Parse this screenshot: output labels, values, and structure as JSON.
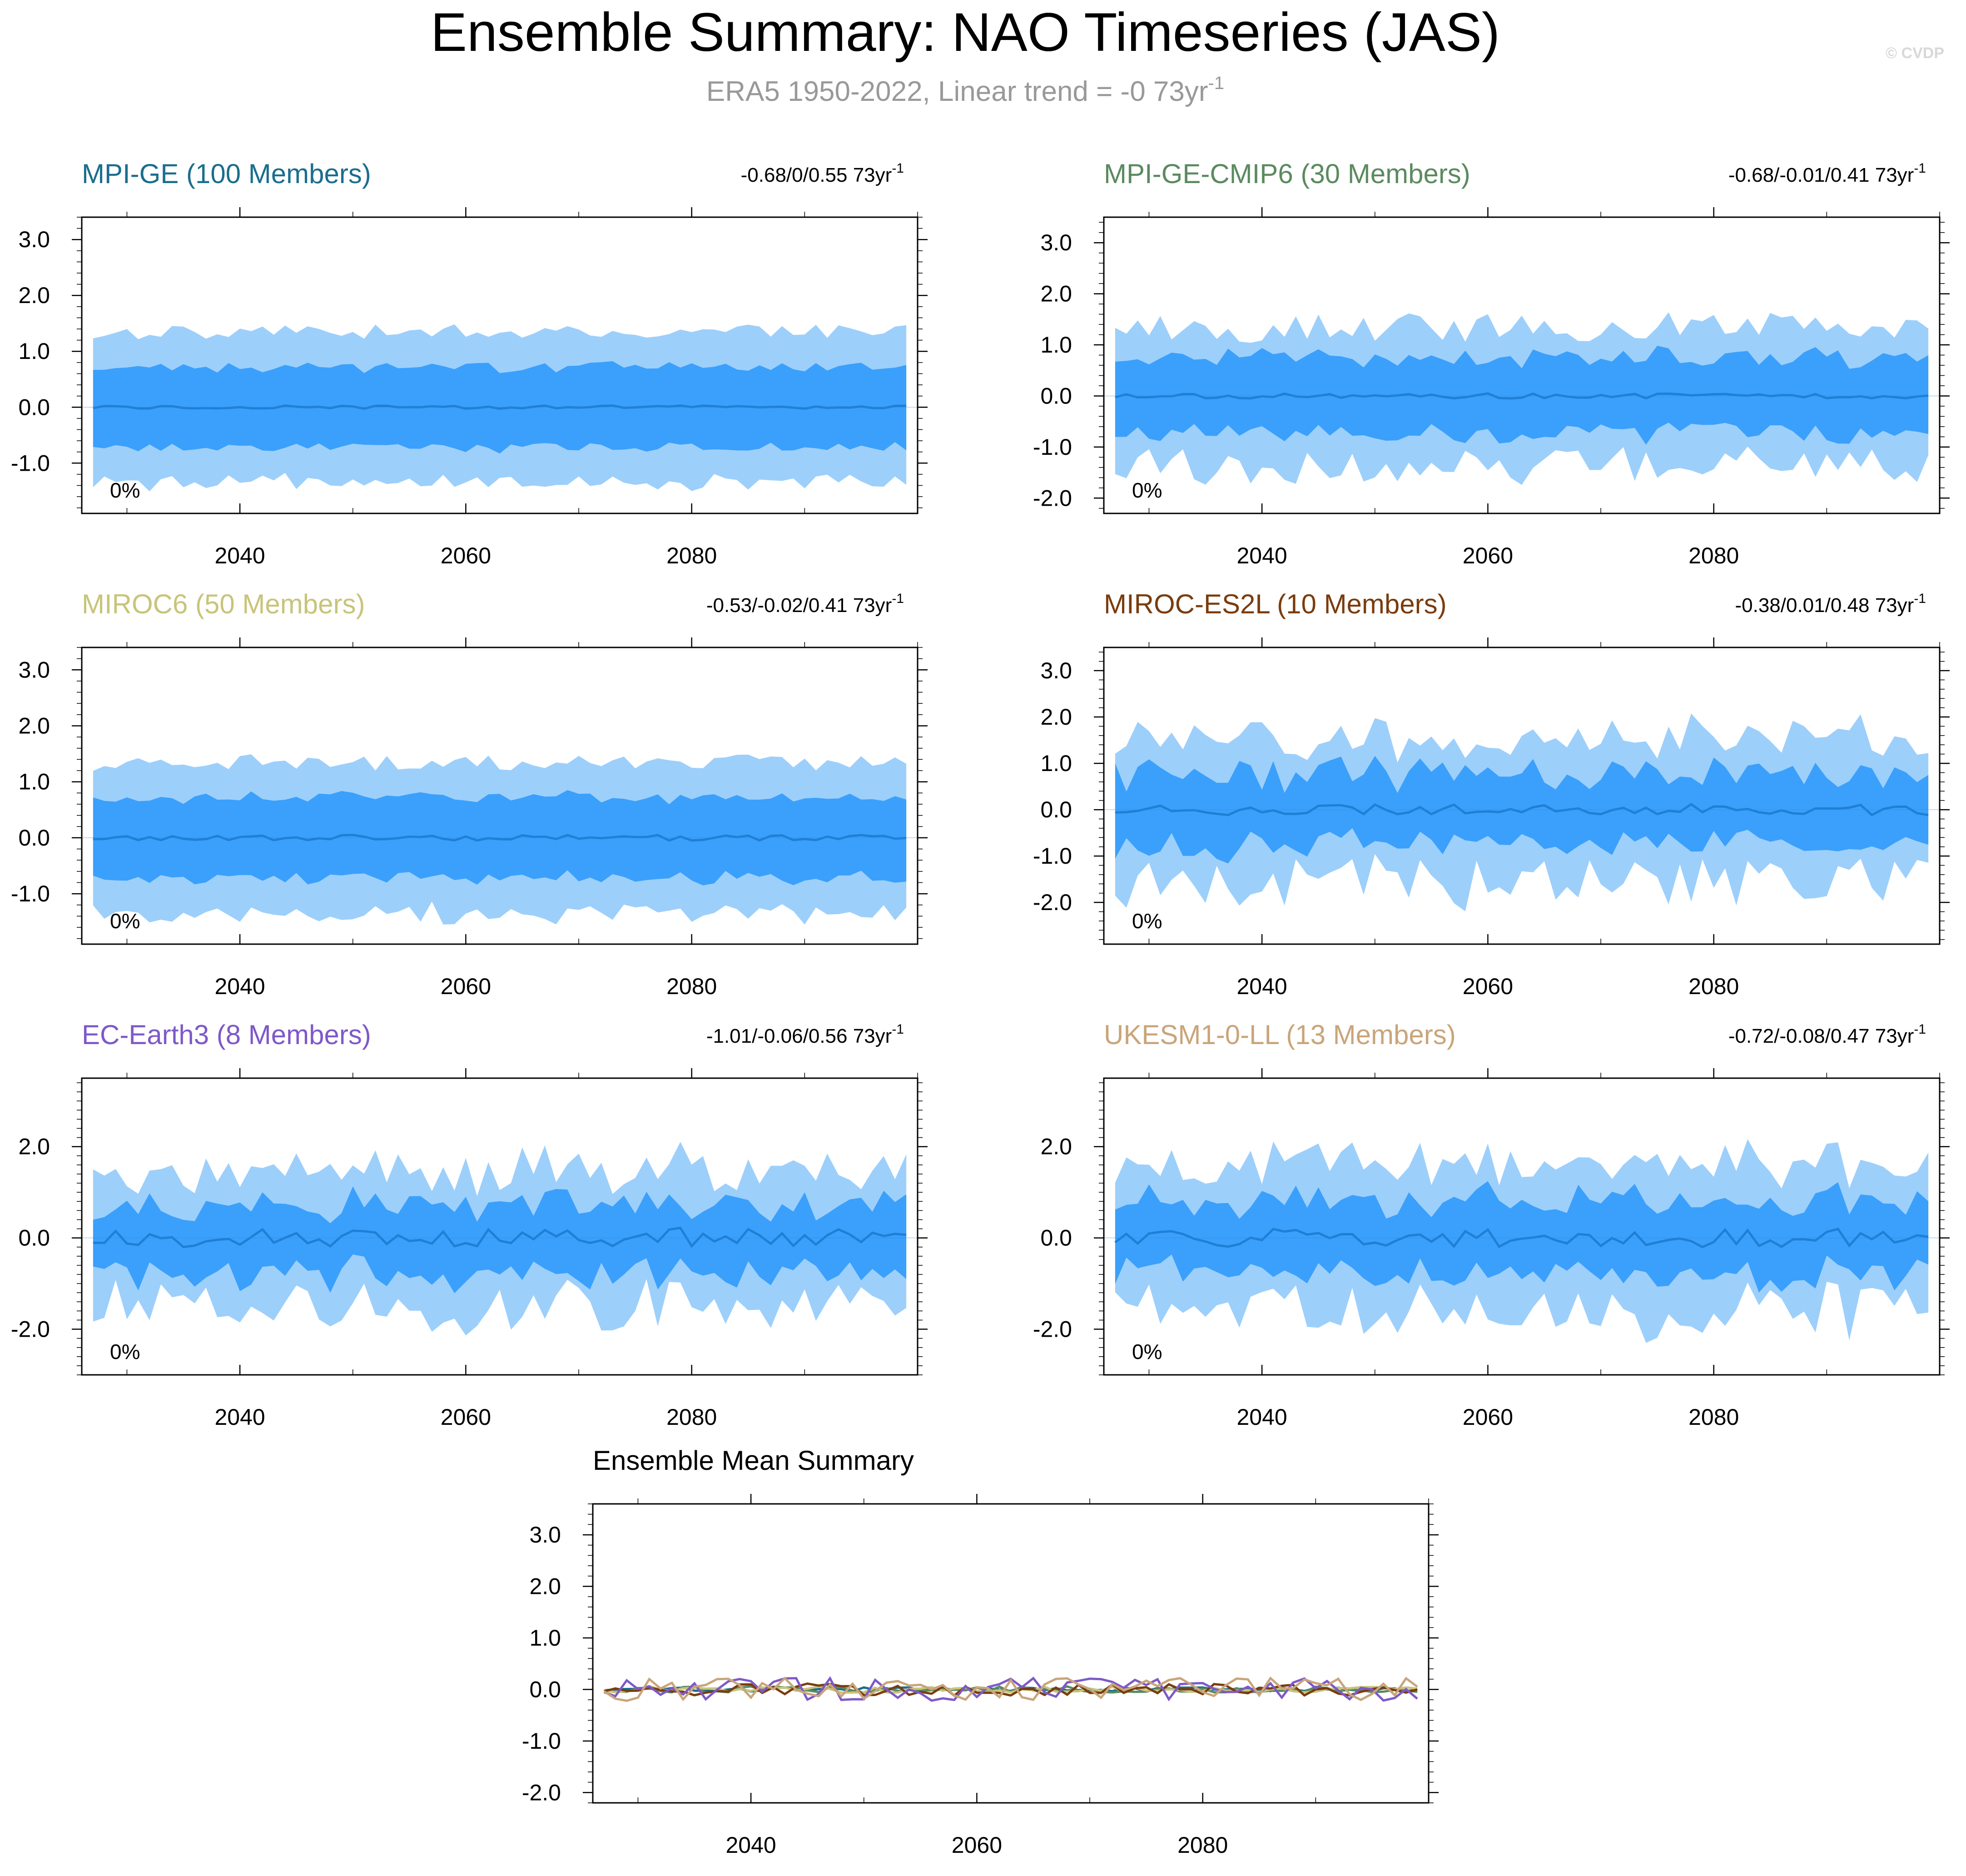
{
  "header": {
    "title": "Ensemble Summary: NAO Timeseries (JAS)",
    "subtitle_main": "ERA5 1950-2022, Linear trend = -0 73yr",
    "subtitle_exp": "-1",
    "watermark": "© CVDP"
  },
  "colors": {
    "outer_band": "#9dcffb",
    "inner_band": "#3aa0fb",
    "mean_line": "#1f7fd6",
    "axis": "#000000",
    "tick_label": "#000000",
    "subtitle": "#999999"
  },
  "chart_data": [
    {
      "type": "area",
      "name": "MPI-GE",
      "title": "MPI-GE (100 Members)",
      "title_color": "#1a6e8e",
      "trend_text": "-0.68/0/0.55 73yr",
      "trend_exp": "-1",
      "pct_label": "0%",
      "x_start": 2027,
      "xlim": [
        2026,
        2100
      ],
      "xticks": [
        2040,
        2060,
        2080
      ],
      "ylim": [
        -1.9,
        3.4
      ],
      "yticks": [
        3.0,
        2.0,
        1.0,
        0.0,
        -1.0
      ],
      "outer_amp": 1.35,
      "inner_amp": 0.72,
      "mean_amp": 0.03,
      "noise": 0.12,
      "seed": 11
    },
    {
      "type": "area",
      "name": "MPI-GE-CMIP6",
      "title": "MPI-GE-CMIP6 (30 Members)",
      "title_color": "#5b8a5f",
      "trend_text": "-0.68/-0.01/0.41 73yr",
      "trend_exp": "-1",
      "pct_label": "0%",
      "x_start": 2027,
      "xlim": [
        2026,
        2100
      ],
      "xticks": [
        2040,
        2060,
        2080
      ],
      "ylim": [
        -2.3,
        3.5
      ],
      "yticks": [
        3.0,
        2.0,
        1.0,
        0.0,
        -1.0,
        -2.0
      ],
      "outer_amp": 1.35,
      "inner_amp": 0.75,
      "mean_amp": 0.05,
      "noise": 0.28,
      "seed": 23
    },
    {
      "type": "area",
      "name": "MIROC6",
      "title": "MIROC6 (50 Members)",
      "title_color": "#c8c47a",
      "trend_text": "-0.53/-0.02/0.41 73yr",
      "trend_exp": "-1",
      "pct_label": "0%",
      "x_start": 2027,
      "xlim": [
        2026,
        2100
      ],
      "xticks": [
        2040,
        2060,
        2080
      ],
      "ylim": [
        -1.9,
        3.4
      ],
      "yticks": [
        3.0,
        2.0,
        1.0,
        0.0,
        -1.0
      ],
      "outer_amp": 1.35,
      "inner_amp": 0.72,
      "mean_amp": 0.05,
      "noise": 0.14,
      "seed": 37
    },
    {
      "type": "area",
      "name": "MIROC-ES2L",
      "title": "MIROC-ES2L (10 Members)",
      "title_color": "#7a3c0e",
      "trend_text": "-0.38/0.01/0.48 73yr",
      "trend_exp": "-1",
      "pct_label": "0%",
      "x_start": 2027,
      "xlim": [
        2026,
        2100
      ],
      "xticks": [
        2040,
        2060,
        2080
      ],
      "ylim": [
        -2.9,
        3.5
      ],
      "yticks": [
        3.0,
        2.0,
        1.0,
        0.0,
        -1.0,
        -2.0
      ],
      "outer_amp": 1.55,
      "inner_amp": 0.75,
      "mean_amp": 0.12,
      "noise": 0.45,
      "seed": 41
    },
    {
      "type": "area",
      "name": "EC-Earth3",
      "title": "EC-Earth3 (8 Members)",
      "title_color": "#7e59c9",
      "trend_text": "-1.01/-0.06/0.56 73yr",
      "trend_exp": "-1",
      "pct_label": "0%",
      "x_start": 2027,
      "xlim": [
        2026,
        2100
      ],
      "xticks": [
        2040,
        2060,
        2080
      ],
      "ylim": [
        -3.0,
        3.5
      ],
      "yticks": [
        2.0,
        0.0,
        -2.0
      ],
      "outer_amp": 1.5,
      "inner_amp": 0.75,
      "mean_amp": 0.22,
      "noise": 0.42,
      "seed": 53
    },
    {
      "type": "area",
      "name": "UKESM1-0-LL",
      "title": "UKESM1-0-LL (13 Members)",
      "title_color": "#c9a57a",
      "trend_text": "-0.72/-0.08/0.47 73yr",
      "trend_exp": "-1",
      "pct_label": "0%",
      "x_start": 2027,
      "xlim": [
        2026,
        2100
      ],
      "xticks": [
        2040,
        2060,
        2080
      ],
      "ylim": [
        -3.0,
        3.5
      ],
      "yticks": [
        2.0,
        0.0,
        -2.0
      ],
      "outer_amp": 1.6,
      "inner_amp": 0.8,
      "mean_amp": 0.2,
      "noise": 0.42,
      "seed": 67
    },
    {
      "type": "line",
      "name": "Ensemble Mean Summary",
      "title": "Ensemble Mean Summary",
      "x_start": 2027,
      "xlim": [
        2026,
        2100
      ],
      "xticks": [
        2040,
        2060,
        2080
      ],
      "ylim": [
        -2.2,
        3.6
      ],
      "yticks": [
        3.0,
        2.0,
        1.0,
        0.0,
        -1.0,
        -2.0
      ],
      "series": [
        {
          "name": "MPI-GE",
          "color": "#1a6e8e",
          "amp": 0.04,
          "seed": 11
        },
        {
          "name": "MPI-GE-CMIP6",
          "color": "#5b8a5f",
          "amp": 0.06,
          "seed": 23
        },
        {
          "name": "MIROC6",
          "color": "#c8c47a",
          "amp": 0.06,
          "seed": 37
        },
        {
          "name": "MIROC-ES2L",
          "color": "#7a3c0e",
          "amp": 0.12,
          "seed": 41
        },
        {
          "name": "EC-Earth3",
          "color": "#7e59c9",
          "amp": 0.22,
          "seed": 53
        },
        {
          "name": "UKESM1-0-LL",
          "color": "#c9a57a",
          "amp": 0.22,
          "seed": 67
        }
      ]
    }
  ]
}
